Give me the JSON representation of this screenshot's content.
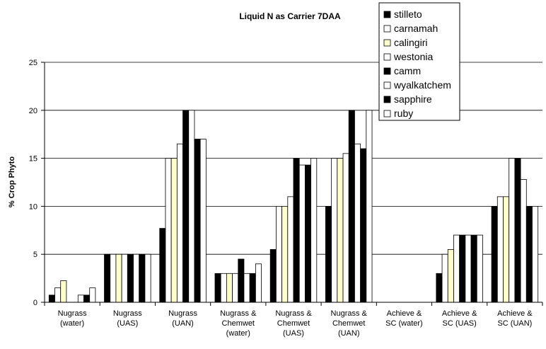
{
  "chart_data": {
    "type": "bar",
    "title": "Liquid N as Carrier 7DAA",
    "y_label": "% Crop Phyto",
    "categories": [
      [
        "Nugrass",
        "(water)"
      ],
      [
        "Nugrass",
        "(UAS)"
      ],
      [
        "Nugrass",
        "(UAN)"
      ],
      [
        "Nugrass &",
        "Chemwet",
        "(water)"
      ],
      [
        "Nugrass &",
        "Chemwet",
        "(UAS)"
      ],
      [
        "Nugrass &",
        "Chemwet",
        "(UAN)"
      ],
      [
        "Achieve &",
        "SC (water)"
      ],
      [
        "Achieve &",
        "SC (UAS)"
      ],
      [
        "Achieve &",
        "SC (UAN)"
      ]
    ],
    "series": [
      {
        "name": "stilleto",
        "color": "#000000",
        "values": [
          0.75,
          5,
          7.7,
          3,
          5.5,
          10,
          0,
          3,
          10
        ]
      },
      {
        "name": "carnamah",
        "color": "#ffffff",
        "values": [
          1.5,
          5,
          15,
          3,
          10,
          15,
          0,
          5,
          11
        ]
      },
      {
        "name": "calingiri",
        "color": "#ffffcc",
        "values": [
          2.25,
          5,
          15,
          3,
          10,
          15,
          0,
          5.5,
          11
        ]
      },
      {
        "name": "westonia",
        "color": "#ffffff",
        "values": [
          0,
          5,
          16.5,
          3,
          11,
          15.5,
          0,
          7,
          15
        ]
      },
      {
        "name": "camm",
        "color": "#000000",
        "values": [
          0,
          5,
          20,
          4.5,
          15,
          20,
          0,
          7,
          15
        ]
      },
      {
        "name": "wyalkatchem",
        "color": "#ffffff",
        "values": [
          0.75,
          5,
          20,
          3,
          14.3,
          16.5,
          0,
          7,
          12.8
        ]
      },
      {
        "name": "sapphire",
        "color": "#000000",
        "values": [
          0.75,
          5,
          17,
          3,
          14.3,
          16,
          0,
          7,
          10
        ]
      },
      {
        "name": "ruby",
        "color": "#ffffff",
        "values": [
          1.5,
          5,
          17,
          4,
          15,
          20,
          0,
          7,
          10
        ]
      }
    ],
    "ylim": [
      0,
      25
    ],
    "yticks": [
      0,
      5,
      10,
      15,
      20,
      25
    ],
    "grid": true,
    "legend": "top-right"
  }
}
